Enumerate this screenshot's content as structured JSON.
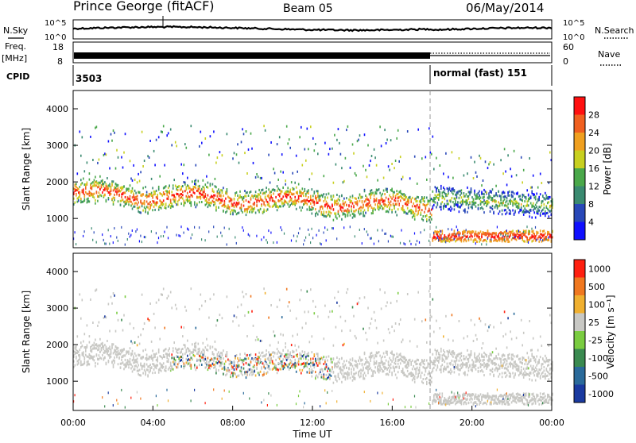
{
  "header": {
    "title": "Prince George (fitACF)",
    "beam": "Beam 05",
    "date": "06/May/2014"
  },
  "summary": {
    "nsky_label": "N.Sky",
    "nsky_ticks": [
      "10^5",
      "10^0"
    ],
    "nsearch_label": "N.Search",
    "nsearch_ticks": [
      "10^5",
      "10^0"
    ],
    "freq_label": "Freq.",
    "freq_unit": "[MHz]",
    "freq_ticks": [
      "18",
      "8"
    ],
    "nave_label": "Nave",
    "nave_ticks": [
      "60",
      "0"
    ],
    "cpid_label": "CPID",
    "cpid_1": "3503",
    "cpid_2": "normal (fast) 151",
    "mode_change_time": "18:00"
  },
  "chart_data": [
    {
      "type": "heatmap",
      "panel": "power",
      "ylabel": "Slant Range [km]",
      "yticks": [
        "1000",
        "2000",
        "3000",
        "4000"
      ],
      "ylim": [
        200,
        4500
      ],
      "xlim": [
        "00:00",
        "24:00"
      ],
      "colorbar_label": "Power [dB]",
      "colorbar_ticks": [
        "4",
        "8",
        "12",
        "16",
        "20",
        "24",
        "28"
      ],
      "colorbar_colors": [
        "#1010ff",
        "#2848b8",
        "#3a8a70",
        "#4aa84a",
        "#c8d020",
        "#f0a020",
        "#f06020",
        "#ff1010"
      ],
      "bands": [
        {
          "t_start": 0,
          "t_end": 18,
          "range_center_start": 1650,
          "range_center_end": 1200,
          "level": "strong"
        },
        {
          "t_start": 18,
          "t_end": 24,
          "range_center_start": 450,
          "range_center_end": 500,
          "level": "strong"
        },
        {
          "t_start": 18,
          "t_end": 24,
          "range_center_start": 1600,
          "range_center_end": 1300,
          "level": "moderate"
        }
      ]
    },
    {
      "type": "heatmap",
      "panel": "velocity",
      "ylabel": "Slant Range [km]",
      "yticks": [
        "1000",
        "2000",
        "3000",
        "4000"
      ],
      "ylim": [
        200,
        4500
      ],
      "xlim": [
        "00:00",
        "24:00"
      ],
      "xlabel": "Time UT",
      "xticks": [
        "00:00",
        "04:00",
        "08:00",
        "12:00",
        "16:00",
        "20:00",
        "00:00"
      ],
      "colorbar_label": "Velocity [m s⁻¹]",
      "colorbar_ticks": [
        "1000",
        "500",
        "100",
        "25",
        "-25",
        "-100",
        "-500",
        "-1000"
      ],
      "colorbar_colors": [
        "#1a3aa0",
        "#2a6a9a",
        "#3a8a50",
        "#7acc40",
        "#c8c8c4",
        "#f0b030",
        "#f07820",
        "#ff2010"
      ],
      "ground_scatter_color": "#c8c8c4"
    }
  ]
}
